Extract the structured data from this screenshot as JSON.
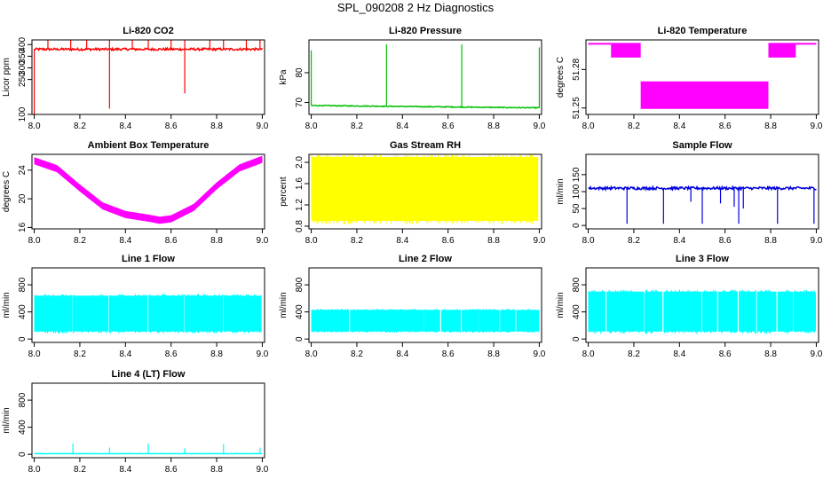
{
  "figure": {
    "title": "SPL_090208  2 Hz Diagnostics"
  },
  "colors": {
    "red": "#ff0000",
    "green": "#00c000",
    "magenta": "#ff00ff",
    "yellow": "#ffff00",
    "blue": "#0000dd",
    "cyan": "#00ffff"
  },
  "chart_data": [
    {
      "type": "line",
      "title": "Li-820 CO2",
      "xlabel": "",
      "ylabel": "Licor ppm",
      "color": "red",
      "xlim": [
        7.99,
        9.01
      ],
      "ylim": [
        100,
        420
      ],
      "xticks": [
        "8.0",
        "8.2",
        "8.4",
        "8.6",
        "8.8",
        "9.0"
      ],
      "xtick_values": [
        8.0,
        8.2,
        8.4,
        8.6,
        8.8,
        9.0
      ],
      "yticks": [
        "100",
        "250",
        "300",
        "350",
        "400"
      ],
      "ytick_values": [
        100,
        250,
        300,
        350,
        400
      ],
      "series": [
        {
          "x": [
            8.0,
            9.0
          ],
          "y": [
            380,
            380
          ],
          "noise": 10,
          "spikes": [
            {
              "x": 8.0,
              "y": 100
            },
            {
              "x": 8.33,
              "y": 125
            },
            {
              "x": 8.66,
              "y": 190
            },
            {
              "x": 8.06,
              "y": 420
            },
            {
              "x": 8.16,
              "y": 420
            },
            {
              "x": 8.23,
              "y": 420
            },
            {
              "x": 8.33,
              "y": 420
            },
            {
              "x": 8.43,
              "y": 420
            },
            {
              "x": 8.5,
              "y": 420
            },
            {
              "x": 8.6,
              "y": 420
            },
            {
              "x": 8.66,
              "y": 420
            },
            {
              "x": 8.77,
              "y": 420
            },
            {
              "x": 8.83,
              "y": 420
            },
            {
              "x": 8.93,
              "y": 420
            },
            {
              "x": 8.99,
              "y": 420
            }
          ]
        }
      ]
    },
    {
      "type": "line",
      "title": "Li-820 Pressure",
      "xlabel": "",
      "ylabel": "kPa",
      "color": "green",
      "xlim": [
        7.99,
        9.01
      ],
      "ylim": [
        66,
        91
      ],
      "xticks": [
        "8.0",
        "8.2",
        "8.4",
        "8.6",
        "8.8",
        "9.0"
      ],
      "xtick_values": [
        8.0,
        8.2,
        8.4,
        8.6,
        8.8,
        9.0
      ],
      "yticks": [
        "70",
        "80"
      ],
      "ytick_values": [
        70,
        80
      ],
      "series": [
        {
          "x": [
            8.0,
            9.0
          ],
          "y": [
            69.0,
            68.2
          ],
          "noise": 0.3,
          "spikes": [
            {
              "x": 8.0,
              "y": 87.5
            },
            {
              "x": 8.33,
              "y": 89.5
            },
            {
              "x": 8.66,
              "y": 89.5
            },
            {
              "x": 9.0,
              "y": 88.5
            }
          ]
        }
      ]
    },
    {
      "type": "step",
      "title": "Li-820 Temperature",
      "xlabel": "",
      "ylabel": "degrees C",
      "color": "magenta",
      "xlim": [
        7.99,
        9.01
      ],
      "ylim": [
        51.245,
        51.303
      ],
      "xticks": [
        "8.0",
        "8.2",
        "8.4",
        "8.6",
        "8.8",
        "9.0"
      ],
      "xtick_values": [
        8.0,
        8.2,
        8.4,
        8.6,
        8.8,
        9.0
      ],
      "yticks": [
        "51.25",
        "51.28"
      ],
      "ytick_values": [
        51.25,
        51.28
      ],
      "levels": [
        51.25,
        51.27,
        51.29,
        51.3
      ],
      "segments": [
        {
          "x0": 8.0,
          "x1": 8.1,
          "levels": [
            51.3
          ]
        },
        {
          "x0": 8.1,
          "x1": 8.23,
          "levels": [
            51.29,
            51.3
          ]
        },
        {
          "x0": 8.23,
          "x1": 8.79,
          "levels": [
            51.27,
            51.25
          ]
        },
        {
          "x0": 8.79,
          "x1": 8.91,
          "levels": [
            51.29,
            51.3
          ]
        },
        {
          "x0": 8.91,
          "x1": 9.0,
          "levels": [
            51.3
          ]
        }
      ]
    },
    {
      "type": "line",
      "title": "Ambient Box Temperature",
      "xlabel": "",
      "ylabel": "degrees C",
      "color": "magenta",
      "xlim": [
        7.99,
        9.01
      ],
      "ylim": [
        15.8,
        26.2
      ],
      "xticks": [
        "8.0",
        "8.2",
        "8.4",
        "8.6",
        "8.8",
        "9.0"
      ],
      "xtick_values": [
        8.0,
        8.2,
        8.4,
        8.6,
        8.8,
        9.0
      ],
      "yticks": [
        "16",
        "20",
        "24"
      ],
      "ytick_values": [
        16,
        20,
        24
      ],
      "band": 0.5,
      "series": [
        {
          "x": [
            8.0,
            8.1,
            8.2,
            8.3,
            8.4,
            8.5,
            8.55,
            8.6,
            8.7,
            8.8,
            8.9,
            9.0
          ],
          "y": [
            25.3,
            24.2,
            21.5,
            19.0,
            17.8,
            17.3,
            17.0,
            17.2,
            18.8,
            21.8,
            24.3,
            25.5
          ]
        }
      ]
    },
    {
      "type": "band",
      "title": "Gas Stream RH",
      "xlabel": "",
      "ylabel": "percent",
      "color": "yellow",
      "xlim": [
        7.99,
        9.01
      ],
      "ylim": [
        0.75,
        2.15
      ],
      "xticks": [
        "8.0",
        "8.2",
        "8.4",
        "8.6",
        "8.8",
        "9.0"
      ],
      "xtick_values": [
        8.0,
        8.2,
        8.4,
        8.6,
        8.8,
        9.0
      ],
      "yticks": [
        "0.8",
        "1.2",
        "1.6",
        "2.0"
      ],
      "ytick_values": [
        0.8,
        1.2,
        1.6,
        2.0
      ],
      "range": [
        0.9,
        2.1
      ]
    },
    {
      "type": "line",
      "title": "Sample Flow",
      "xlabel": "",
      "ylabel": "ml/min",
      "color": "blue",
      "xlim": [
        7.99,
        9.01
      ],
      "ylim": [
        -10,
        210
      ],
      "xticks": [
        "8.0",
        "8.2",
        "8.4",
        "8.6",
        "8.8",
        "9.0"
      ],
      "xtick_values": [
        8.0,
        8.2,
        8.4,
        8.6,
        8.8,
        9.0
      ],
      "yticks": [
        "0",
        "50",
        "100",
        "150"
      ],
      "ytick_values": [
        0,
        50,
        100,
        150
      ],
      "series": [
        {
          "x": [
            8.0,
            9.0
          ],
          "y": [
            110,
            110
          ],
          "noise": 8,
          "spikes": [
            {
              "x": 8.17,
              "y": 5
            },
            {
              "x": 8.33,
              "y": 5
            },
            {
              "x": 8.5,
              "y": 5
            },
            {
              "x": 8.66,
              "y": 5
            },
            {
              "x": 8.83,
              "y": 5
            },
            {
              "x": 8.99,
              "y": 5
            },
            {
              "x": 8.45,
              "y": 70
            },
            {
              "x": 8.58,
              "y": 65
            },
            {
              "x": 8.64,
              "y": 55
            },
            {
              "x": 8.68,
              "y": 50
            }
          ]
        }
      ]
    },
    {
      "type": "band",
      "title": "Line 1 Flow",
      "xlabel": "",
      "ylabel": "ml/min",
      "color": "cyan",
      "xlim": [
        7.99,
        9.01
      ],
      "ylim": [
        -50,
        1050
      ],
      "xticks": [
        "8.0",
        "8.2",
        "8.4",
        "8.6",
        "8.8",
        "9.0"
      ],
      "xtick_values": [
        8.0,
        8.2,
        8.4,
        8.6,
        8.8,
        9.0
      ],
      "yticks": [
        "0",
        "400",
        "800"
      ],
      "ytick_values": [
        0,
        400,
        800
      ],
      "range": [
        110,
        640
      ],
      "gaps": [
        8.17,
        8.33,
        8.5,
        8.66,
        8.83
      ]
    },
    {
      "type": "band",
      "title": "Line 2 Flow",
      "xlabel": "",
      "ylabel": "ml/min",
      "color": "cyan",
      "xlim": [
        7.99,
        9.01
      ],
      "ylim": [
        -50,
        1050
      ],
      "xticks": [
        "8.0",
        "8.2",
        "8.4",
        "8.6",
        "8.8",
        "9.0"
      ],
      "xtick_values": [
        8.0,
        8.2,
        8.4,
        8.6,
        8.8,
        9.0
      ],
      "yticks": [
        "0",
        "400",
        "800"
      ],
      "ytick_values": [
        0,
        400,
        800
      ],
      "range": [
        110,
        430
      ],
      "gaps": [
        8.17,
        8.33,
        8.5,
        8.57,
        8.66,
        8.74,
        8.83,
        8.9
      ]
    },
    {
      "type": "band",
      "title": "Line 3 Flow",
      "xlabel": "",
      "ylabel": "ml/min",
      "color": "cyan",
      "xlim": [
        7.99,
        9.01
      ],
      "ylim": [
        -50,
        1050
      ],
      "xticks": [
        "8.0",
        "8.2",
        "8.4",
        "8.6",
        "8.8",
        "9.0"
      ],
      "xtick_values": [
        8.0,
        8.2,
        8.4,
        8.6,
        8.8,
        9.0
      ],
      "yticks": [
        "0",
        "400",
        "800"
      ],
      "ytick_values": [
        0,
        400,
        800
      ],
      "range": [
        110,
        700
      ],
      "gaps": [
        8.08,
        8.17,
        8.25,
        8.33,
        8.5,
        8.57,
        8.66,
        8.74,
        8.83,
        8.9
      ]
    },
    {
      "type": "line",
      "title": "Line 4 (LT) Flow",
      "xlabel": "",
      "ylabel": "ml/min",
      "color": "cyan",
      "xlim": [
        7.99,
        9.01
      ],
      "ylim": [
        -50,
        1050
      ],
      "xticks": [
        "8.0",
        "8.2",
        "8.4",
        "8.6",
        "8.8",
        "9.0"
      ],
      "xtick_values": [
        8.0,
        8.2,
        8.4,
        8.6,
        8.8,
        9.0
      ],
      "yticks": [
        "0",
        "400",
        "800"
      ],
      "ytick_values": [
        0,
        400,
        800
      ],
      "series": [
        {
          "x": [
            8.0,
            9.0
          ],
          "y": [
            10,
            10
          ],
          "noise": 4,
          "spikes": [
            {
              "x": 8.17,
              "y": 160
            },
            {
              "x": 8.33,
              "y": 100
            },
            {
              "x": 8.5,
              "y": 160
            },
            {
              "x": 8.66,
              "y": 90
            },
            {
              "x": 8.83,
              "y": 150
            },
            {
              "x": 8.99,
              "y": 100
            }
          ]
        }
      ]
    }
  ]
}
